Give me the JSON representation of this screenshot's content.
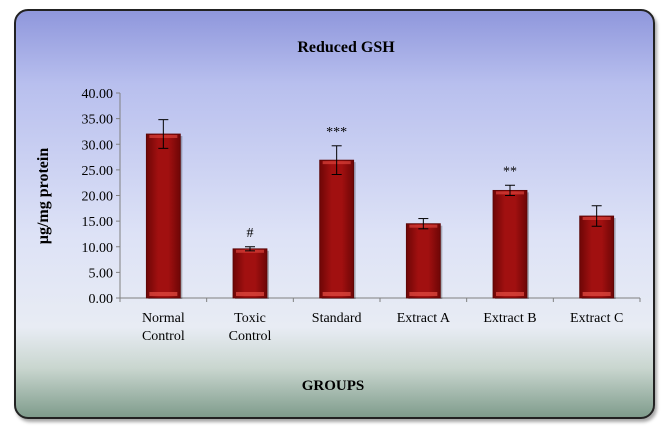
{
  "chart_data": {
    "type": "bar",
    "title": "Reduced GSH",
    "xlabel": "GROUPS",
    "ylabel": "µg/mg protein",
    "ylim": [
      0,
      40
    ],
    "yticks": [
      "0.00",
      "5.00",
      "10.00",
      "15.00",
      "20.00",
      "25.00",
      "30.00",
      "35.00",
      "40.00"
    ],
    "categories": [
      "Normal Control",
      "Toxic Control",
      "Standard",
      "Extract A",
      "Extract B",
      "Extract C"
    ],
    "category_lines": [
      [
        "Normal",
        "Control"
      ],
      [
        "Toxic",
        "Control"
      ],
      [
        "Standard"
      ],
      [
        "Extract A"
      ],
      [
        "Extract B"
      ],
      [
        "Extract C"
      ]
    ],
    "values": [
      32.0,
      9.6,
      26.9,
      14.5,
      21.0,
      16.0
    ],
    "errors": [
      2.8,
      0.4,
      2.8,
      1.0,
      1.0,
      2.0
    ],
    "annotations": [
      "",
      "#",
      "***",
      "",
      "**",
      ""
    ],
    "bar_color": "#a11010",
    "grid": false,
    "legend": "none"
  }
}
